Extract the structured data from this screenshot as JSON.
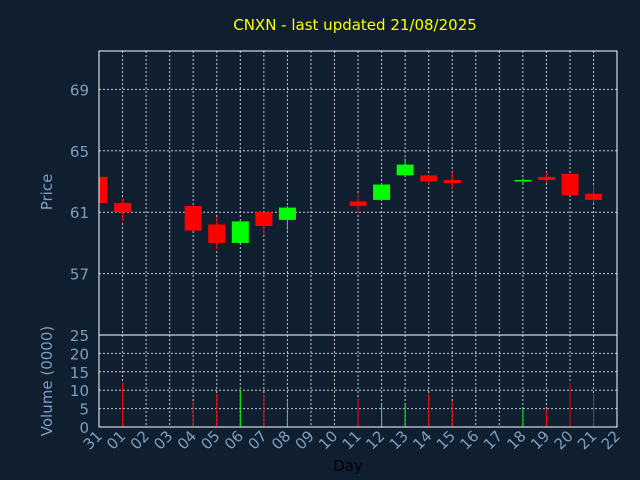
{
  "chart_data": {
    "type": "candlestick",
    "title": "CNXN - last updated 21/08/2025",
    "xlabel": "Day",
    "x_ticks": [
      "31",
      "01",
      "02",
      "03",
      "04",
      "05",
      "06",
      "07",
      "08",
      "09",
      "10",
      "11",
      "12",
      "13",
      "14",
      "15",
      "16",
      "17",
      "18",
      "19",
      "20",
      "21",
      "22"
    ],
    "price_panel": {
      "ylabel": "Price",
      "ylim": [
        53,
        71.5
      ],
      "yticks": [
        57,
        61,
        65,
        69
      ],
      "grid": true
    },
    "volume_panel": {
      "ylabel": "Volume (0000)",
      "ylim": [
        0,
        25
      ],
      "yticks": [
        0,
        5,
        10,
        15,
        20,
        25
      ],
      "grid": true
    },
    "colors": {
      "up": "#00ff00",
      "down": "#ff0000"
    },
    "candles": [
      {
        "day": "31",
        "open": 63.3,
        "high": 63.3,
        "low": 61.6,
        "close": 61.6,
        "volume": 0
      },
      {
        "day": "01",
        "open": 61.6,
        "high": 61.9,
        "low": 60.4,
        "close": 61.0,
        "volume": 12
      },
      {
        "day": "04",
        "open": 61.4,
        "high": 61.4,
        "low": 59.8,
        "close": 59.8,
        "volume": 7
      },
      {
        "day": "05",
        "open": 60.2,
        "high": 60.7,
        "low": 58.6,
        "close": 59.0,
        "volume": 9
      },
      {
        "day": "06",
        "open": 59.0,
        "high": 60.4,
        "low": 59.0,
        "close": 60.4,
        "volume": 10
      },
      {
        "day": "07",
        "open": 61.0,
        "high": 61.0,
        "low": 59.5,
        "close": 60.1,
        "volume": 9
      },
      {
        "day": "08",
        "open": 60.5,
        "high": 61.4,
        "low": 59.8,
        "close": 61.3,
        "volume": 7
      },
      {
        "day": "11",
        "open": 61.7,
        "high": 62.2,
        "low": 60.9,
        "close": 61.4,
        "volume": 8
      },
      {
        "day": "12",
        "open": 61.8,
        "high": 62.9,
        "low": 61.8,
        "close": 62.8,
        "volume": 6
      },
      {
        "day": "13",
        "open": 63.4,
        "high": 64.5,
        "low": 63.4,
        "close": 64.1,
        "volume": 6
      },
      {
        "day": "14",
        "open": 63.4,
        "high": 63.4,
        "low": 62.8,
        "close": 63.0,
        "volume": 9
      },
      {
        "day": "15",
        "open": 63.1,
        "high": 63.6,
        "low": 62.5,
        "close": 62.9,
        "volume": 7
      },
      {
        "day": "18",
        "open": 63.0,
        "high": 63.2,
        "low": 62.8,
        "close": 63.1,
        "volume": 5
      },
      {
        "day": "19",
        "open": 63.3,
        "high": 63.6,
        "low": 62.9,
        "close": 63.1,
        "volume": 5
      },
      {
        "day": "20",
        "open": 63.5,
        "high": 63.5,
        "low": 62.1,
        "close": 62.1,
        "volume": 12
      },
      {
        "day": "21",
        "open": 62.2,
        "high": 62.8,
        "low": 61.6,
        "close": 61.8,
        "volume": 9
      }
    ]
  }
}
